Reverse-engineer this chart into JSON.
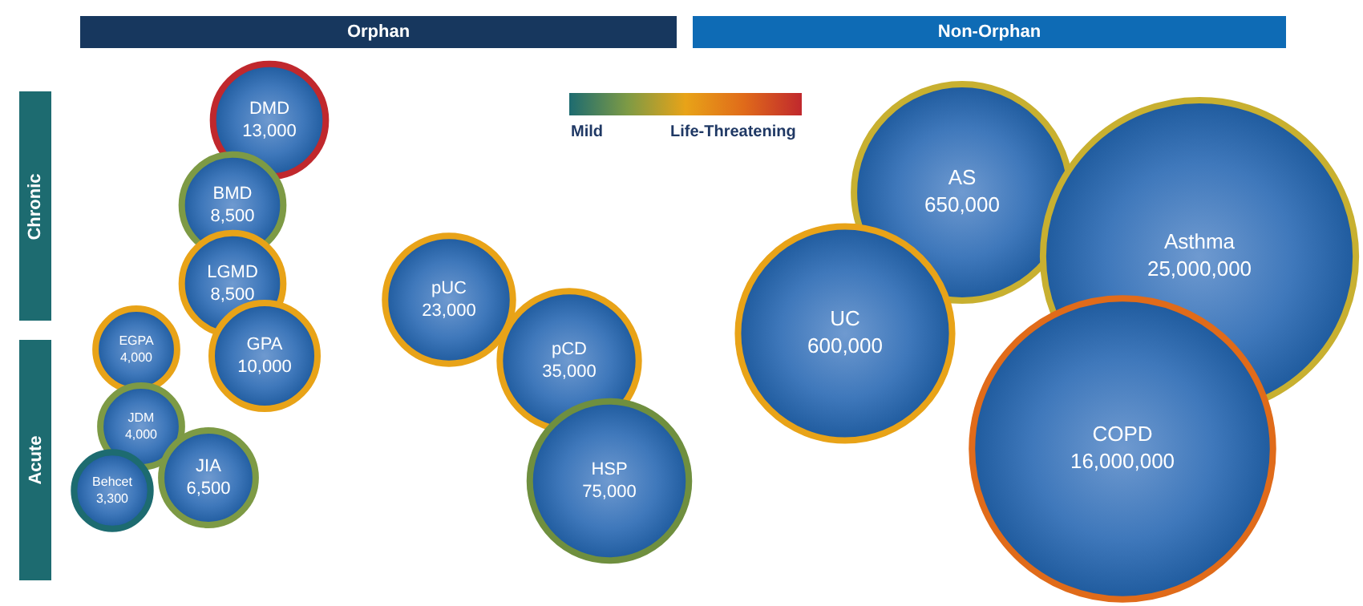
{
  "chart_data": {
    "type": "other",
    "categories": [
      "DMD",
      "BMD",
      "LGMD",
      "GPA",
      "EGPA",
      "JDM",
      "Behcet",
      "JIA",
      "pUC",
      "pCD",
      "HSP",
      "AS",
      "Asthma",
      "UC",
      "COPD"
    ],
    "values": [
      13000,
      8500,
      8500,
      10000,
      4000,
      4000,
      3300,
      6500,
      23000,
      35000,
      75000,
      650000,
      25000000,
      600000,
      16000000
    ],
    "colors": [
      "#c0282d",
      "#7d9a45",
      "#e8a318",
      "#e8a318",
      "#e8a318",
      "#7d9a45",
      "#1d6b70",
      "#7d9a45",
      "#e8a318",
      "#e8a318",
      "#6f8f3f",
      "#c8b030",
      "#c8b030",
      "#e8a318",
      "#e06b1a"
    ],
    "value_labels": [
      "13,000",
      "8,500",
      "8,500",
      "10,000",
      "4,000",
      "4,000",
      "3,300",
      "6,500",
      "23,000",
      "35,000",
      "75,000",
      "650,000",
      "25,000,000",
      "600,000",
      "16,000,000"
    ],
    "annotations": [
      "Orphan",
      "Non-Orphan",
      "Chronic",
      "Acute",
      "Mild",
      "Life-Threatening"
    ]
  }
}
